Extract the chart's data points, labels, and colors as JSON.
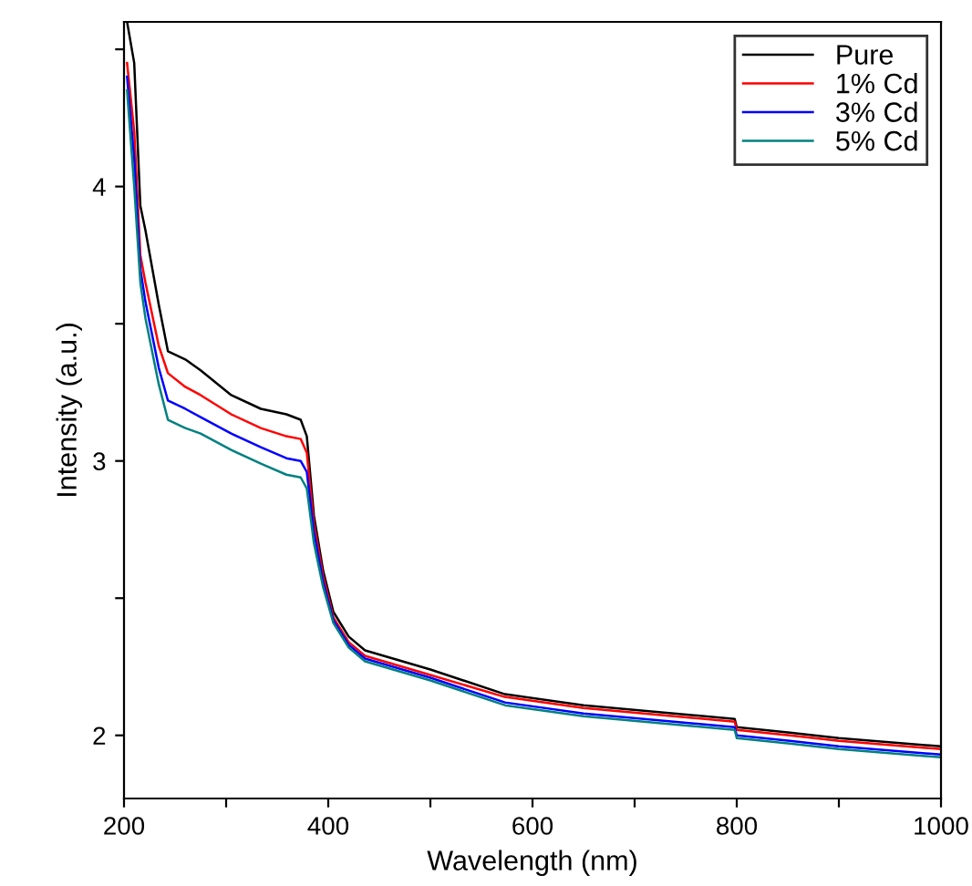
{
  "chart_data": {
    "type": "line",
    "xlabel": "Wavelength (nm)",
    "ylabel": "Intensity (a.u.)",
    "x": [
      203,
      210,
      216,
      221,
      234,
      243,
      260,
      275,
      305,
      334,
      359,
      373,
      379,
      386,
      395,
      405,
      420,
      436,
      500,
      573,
      650,
      798,
      800,
      852,
      900,
      1000
    ],
    "series": [
      {
        "name": "Pure",
        "color": "#000000",
        "values": [
          4.6,
          4.45,
          3.93,
          3.84,
          3.57,
          3.4,
          3.37,
          3.33,
          3.24,
          3.19,
          3.17,
          3.15,
          3.09,
          2.8,
          2.6,
          2.45,
          2.36,
          2.31,
          2.24,
          2.15,
          2.11,
          2.06,
          2.03,
          2.01,
          1.99,
          1.96
        ]
      },
      {
        "name": "1% Cd",
        "color": "#ff0000",
        "values": [
          4.45,
          4.2,
          3.75,
          3.65,
          3.42,
          3.32,
          3.27,
          3.24,
          3.17,
          3.12,
          3.09,
          3.08,
          3.03,
          2.77,
          2.58,
          2.43,
          2.34,
          2.29,
          2.22,
          2.14,
          2.1,
          2.05,
          2.02,
          2.0,
          1.98,
          1.95
        ]
      },
      {
        "name": "3% Cd",
        "color": "#0000ff",
        "values": [
          4.4,
          4.1,
          3.7,
          3.58,
          3.34,
          3.22,
          3.19,
          3.16,
          3.1,
          3.05,
          3.01,
          3.0,
          2.96,
          2.74,
          2.56,
          2.42,
          2.33,
          2.28,
          2.21,
          2.12,
          2.08,
          2.03,
          2.0,
          1.98,
          1.96,
          1.93
        ]
      },
      {
        "name": "5% Cd",
        "color": "#008080",
        "values": [
          4.35,
          4.0,
          3.65,
          3.52,
          3.28,
          3.15,
          3.12,
          3.1,
          3.04,
          2.99,
          2.95,
          2.94,
          2.9,
          2.7,
          2.54,
          2.41,
          2.32,
          2.27,
          2.2,
          2.11,
          2.07,
          2.02,
          1.99,
          1.97,
          1.95,
          1.92
        ]
      }
    ],
    "xlim": [
      200,
      1000
    ],
    "ylim": [
      1.77,
      4.6
    ],
    "xticks": [
      200,
      {
        "value": 300,
        "label": null
      },
      400,
      {
        "value": 500,
        "label": null
      },
      600,
      {
        "value": 700,
        "label": null
      },
      800,
      {
        "value": 900,
        "label": null
      },
      1000
    ],
    "yticks": [
      2,
      {
        "value": 2.5,
        "label": null
      },
      3,
      {
        "value": 3.5,
        "label": null
      },
      4,
      {
        "value": 4.5,
        "label": null
      }
    ],
    "grid": false,
    "legend": "top right",
    "marker": "none",
    "line_style": "solid"
  }
}
